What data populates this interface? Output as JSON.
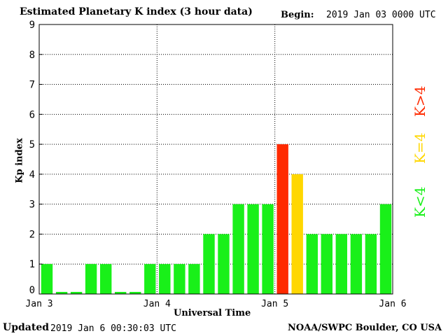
{
  "header": {
    "title": "Estimated Planetary K index (3 hour data)",
    "begin_label": "Begin:",
    "begin_value": "2019 Jan 03 0000 UTC"
  },
  "footer": {
    "updated_label": "Updated",
    "updated_value": "2019 Jan  6 00:30:03 UTC",
    "credit": "NOAA/SWPC Boulder, CO USA"
  },
  "legend": {
    "low": "K<4",
    "mid": "K=4",
    "high": "K>4"
  },
  "colors": {
    "low": "#19f019",
    "mid": "#ffd700",
    "high": "#ff2a00",
    "axis": "#000000",
    "grid": "#000000"
  },
  "chart_data": {
    "type": "bar",
    "title": "Estimated Planetary K index (3 hour data)",
    "xlabel": "Universal Time",
    "ylabel": "Kp index",
    "ylim": [
      0,
      9
    ],
    "yticks": [
      0,
      1,
      2,
      3,
      4,
      5,
      6,
      7,
      8,
      9
    ],
    "xticks": [
      "Jan 3",
      "Jan 4",
      "Jan 5",
      "Jan 6"
    ],
    "grid": true,
    "values": [
      1,
      0.07,
      0.07,
      1,
      1,
      0.07,
      0.07,
      1,
      1,
      1,
      1,
      2,
      2,
      3,
      3,
      3,
      5,
      4,
      2,
      2,
      2,
      2,
      2,
      3
    ],
    "categories": [
      "Jan 3 00",
      "Jan 3 03",
      "Jan 3 06",
      "Jan 3 09",
      "Jan 3 12",
      "Jan 3 15",
      "Jan 3 18",
      "Jan 3 21",
      "Jan 4 00",
      "Jan 4 03",
      "Jan 4 06",
      "Jan 4 09",
      "Jan 4 12",
      "Jan 4 15",
      "Jan 4 18",
      "Jan 4 21",
      "Jan 5 00",
      "Jan 5 03",
      "Jan 5 06",
      "Jan 5 09",
      "Jan 5 12",
      "Jan 5 15",
      "Jan 5 18",
      "Jan 5 21"
    ]
  }
}
